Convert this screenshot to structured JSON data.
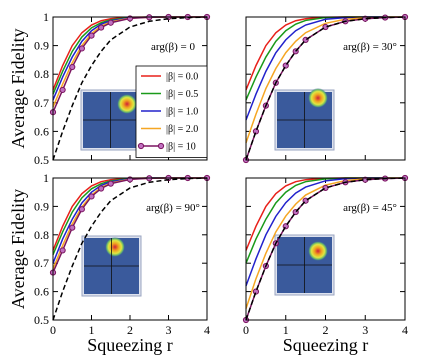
{
  "chart_data": [
    {
      "type": "line",
      "annotation": "arg(β) = 0",
      "ylabel": "Average Fidelity",
      "x": [
        0,
        0.25,
        0.5,
        0.75,
        1,
        1.25,
        1.5,
        2,
        2.5,
        3,
        3.5,
        4
      ],
      "xlim": [
        0,
        4
      ],
      "xticks": [
        0,
        1,
        2,
        3,
        4
      ],
      "ylim": [
        0.5,
        1
      ],
      "yticks": [
        0.5,
        0.6,
        0.7,
        0.8,
        0.9,
        1
      ],
      "legend": "upper right",
      "series": [
        {
          "name": "|β| = 0.0",
          "color": "#e8201a",
          "values": [
            0.745,
            0.83,
            0.9,
            0.945,
            0.972,
            0.987,
            0.994,
            0.999,
            1,
            1,
            1,
            1
          ]
        },
        {
          "name": "|β| = 0.5",
          "color": "#1a9a1a",
          "values": [
            0.73,
            0.81,
            0.88,
            0.93,
            0.962,
            0.98,
            0.99,
            0.998,
            1,
            1,
            1,
            1
          ]
        },
        {
          "name": "|β| = 1.0",
          "color": "#2222cc",
          "values": [
            0.71,
            0.79,
            0.86,
            0.915,
            0.952,
            0.975,
            0.987,
            0.997,
            1,
            1,
            1,
            1
          ]
        },
        {
          "name": "|β| = 2.0",
          "color": "#f5a623",
          "values": [
            0.685,
            0.765,
            0.84,
            0.9,
            0.942,
            0.968,
            0.983,
            0.996,
            0.999,
            1,
            1,
            1
          ]
        },
        {
          "name": "|β| = 10",
          "color": "#7b1560",
          "marker": true,
          "values": [
            0.667,
            0.745,
            0.825,
            0.89,
            0.935,
            0.963,
            0.98,
            0.995,
            0.999,
            1,
            1,
            1
          ]
        },
        {
          "color": "#000000",
          "dash": true,
          "values": [
            0.5,
            0.6,
            0.69,
            0.77,
            0.83,
            0.88,
            0.92,
            0.965,
            0.985,
            0.994,
            0.998,
            1
          ]
        }
      ]
    },
    {
      "type": "line",
      "annotation": "arg(β) = 30°",
      "x": [
        0,
        0.25,
        0.5,
        0.75,
        1,
        1.25,
        1.5,
        2,
        2.5,
        3,
        3.5,
        4
      ],
      "xlim": [
        0,
        4
      ],
      "xticks": [
        0,
        1,
        2,
        3,
        4
      ],
      "ylim": [
        0.5,
        1
      ],
      "yticks": [
        0.5,
        0.6,
        0.7,
        0.8,
        0.9,
        1
      ],
      "series": [
        {
          "color": "#e8201a",
          "values": [
            0.745,
            0.83,
            0.9,
            0.945,
            0.972,
            0.987,
            0.994,
            0.999,
            1,
            1,
            1,
            1
          ]
        },
        {
          "color": "#1a9a1a",
          "values": [
            0.71,
            0.79,
            0.86,
            0.915,
            0.952,
            0.975,
            0.988,
            0.998,
            1,
            1,
            1,
            1
          ]
        },
        {
          "color": "#2222cc",
          "values": [
            0.64,
            0.73,
            0.81,
            0.875,
            0.92,
            0.952,
            0.972,
            0.992,
            0.998,
            1,
            1,
            1
          ]
        },
        {
          "color": "#f5a623",
          "values": [
            0.56,
            0.66,
            0.75,
            0.82,
            0.875,
            0.915,
            0.945,
            0.978,
            0.992,
            0.997,
            1,
            1
          ]
        },
        {
          "color": "#7b1560",
          "marker": true,
          "values": [
            0.5,
            0.6,
            0.69,
            0.77,
            0.83,
            0.88,
            0.92,
            0.965,
            0.985,
            0.994,
            0.998,
            1
          ]
        },
        {
          "color": "#000000",
          "dash": true,
          "values": [
            0.5,
            0.6,
            0.69,
            0.77,
            0.83,
            0.88,
            0.92,
            0.965,
            0.985,
            0.994,
            0.998,
            1
          ]
        }
      ]
    },
    {
      "type": "line",
      "annotation": "arg(β) = 90°",
      "ylabel": "Average Fidelity",
      "xlabel": "Squeezing r",
      "x": [
        0,
        0.25,
        0.5,
        0.75,
        1,
        1.25,
        1.5,
        2,
        2.5,
        3,
        3.5,
        4
      ],
      "xlim": [
        0,
        4
      ],
      "xticks": [
        0,
        1,
        2,
        3,
        4
      ],
      "ylim": [
        0.5,
        1
      ],
      "yticks": [
        0.5,
        0.6,
        0.7,
        0.8,
        0.9,
        1
      ],
      "series": [
        {
          "color": "#e8201a",
          "values": [
            0.745,
            0.83,
            0.9,
            0.945,
            0.972,
            0.987,
            0.994,
            0.999,
            1,
            1,
            1,
            1
          ]
        },
        {
          "color": "#1a9a1a",
          "values": [
            0.73,
            0.81,
            0.88,
            0.93,
            0.962,
            0.98,
            0.99,
            0.998,
            1,
            1,
            1,
            1
          ]
        },
        {
          "color": "#2222cc",
          "values": [
            0.7,
            0.785,
            0.855,
            0.912,
            0.95,
            0.974,
            0.987,
            0.997,
            1,
            1,
            1,
            1
          ]
        },
        {
          "color": "#f5a623",
          "values": [
            0.68,
            0.762,
            0.838,
            0.898,
            0.94,
            0.967,
            0.982,
            0.996,
            0.999,
            1,
            1,
            1
          ]
        },
        {
          "color": "#7b1560",
          "marker": true,
          "values": [
            0.667,
            0.745,
            0.825,
            0.89,
            0.935,
            0.963,
            0.98,
            0.995,
            0.999,
            1,
            1,
            1
          ]
        },
        {
          "color": "#000000",
          "dash": true,
          "values": [
            0.5,
            0.6,
            0.69,
            0.77,
            0.83,
            0.88,
            0.92,
            0.965,
            0.985,
            0.994,
            0.998,
            1
          ]
        }
      ]
    },
    {
      "type": "line",
      "annotation": "arg(β) = 45°",
      "xlabel": "Squeezing r",
      "x": [
        0,
        0.25,
        0.5,
        0.75,
        1,
        1.25,
        1.5,
        2,
        2.5,
        3,
        3.5,
        4
      ],
      "xlim": [
        0,
        4
      ],
      "xticks": [
        0,
        1,
        2,
        3,
        4
      ],
      "ylim": [
        0.5,
        1
      ],
      "yticks": [
        0.5,
        0.6,
        0.7,
        0.8,
        0.9,
        1
      ],
      "series": [
        {
          "color": "#e8201a",
          "values": [
            0.745,
            0.83,
            0.9,
            0.945,
            0.972,
            0.987,
            0.994,
            0.999,
            1,
            1,
            1,
            1
          ]
        },
        {
          "color": "#1a9a1a",
          "values": [
            0.7,
            0.785,
            0.855,
            0.912,
            0.95,
            0.974,
            0.987,
            0.997,
            1,
            1,
            1,
            1
          ]
        },
        {
          "color": "#2222cc",
          "values": [
            0.62,
            0.715,
            0.8,
            0.865,
            0.913,
            0.947,
            0.968,
            0.99,
            0.998,
            1,
            1,
            1
          ]
        },
        {
          "color": "#f5a623",
          "values": [
            0.54,
            0.645,
            0.735,
            0.81,
            0.866,
            0.908,
            0.94,
            0.975,
            0.991,
            0.997,
            1,
            1
          ]
        },
        {
          "color": "#7b1560",
          "marker": true,
          "values": [
            0.5,
            0.6,
            0.69,
            0.77,
            0.83,
            0.88,
            0.92,
            0.965,
            0.985,
            0.994,
            0.998,
            1
          ]
        },
        {
          "color": "#000000",
          "dash": true,
          "values": [
            0.5,
            0.6,
            0.69,
            0.77,
            0.83,
            0.88,
            0.92,
            0.965,
            0.985,
            0.994,
            0.998,
            1
          ]
        }
      ]
    }
  ]
}
